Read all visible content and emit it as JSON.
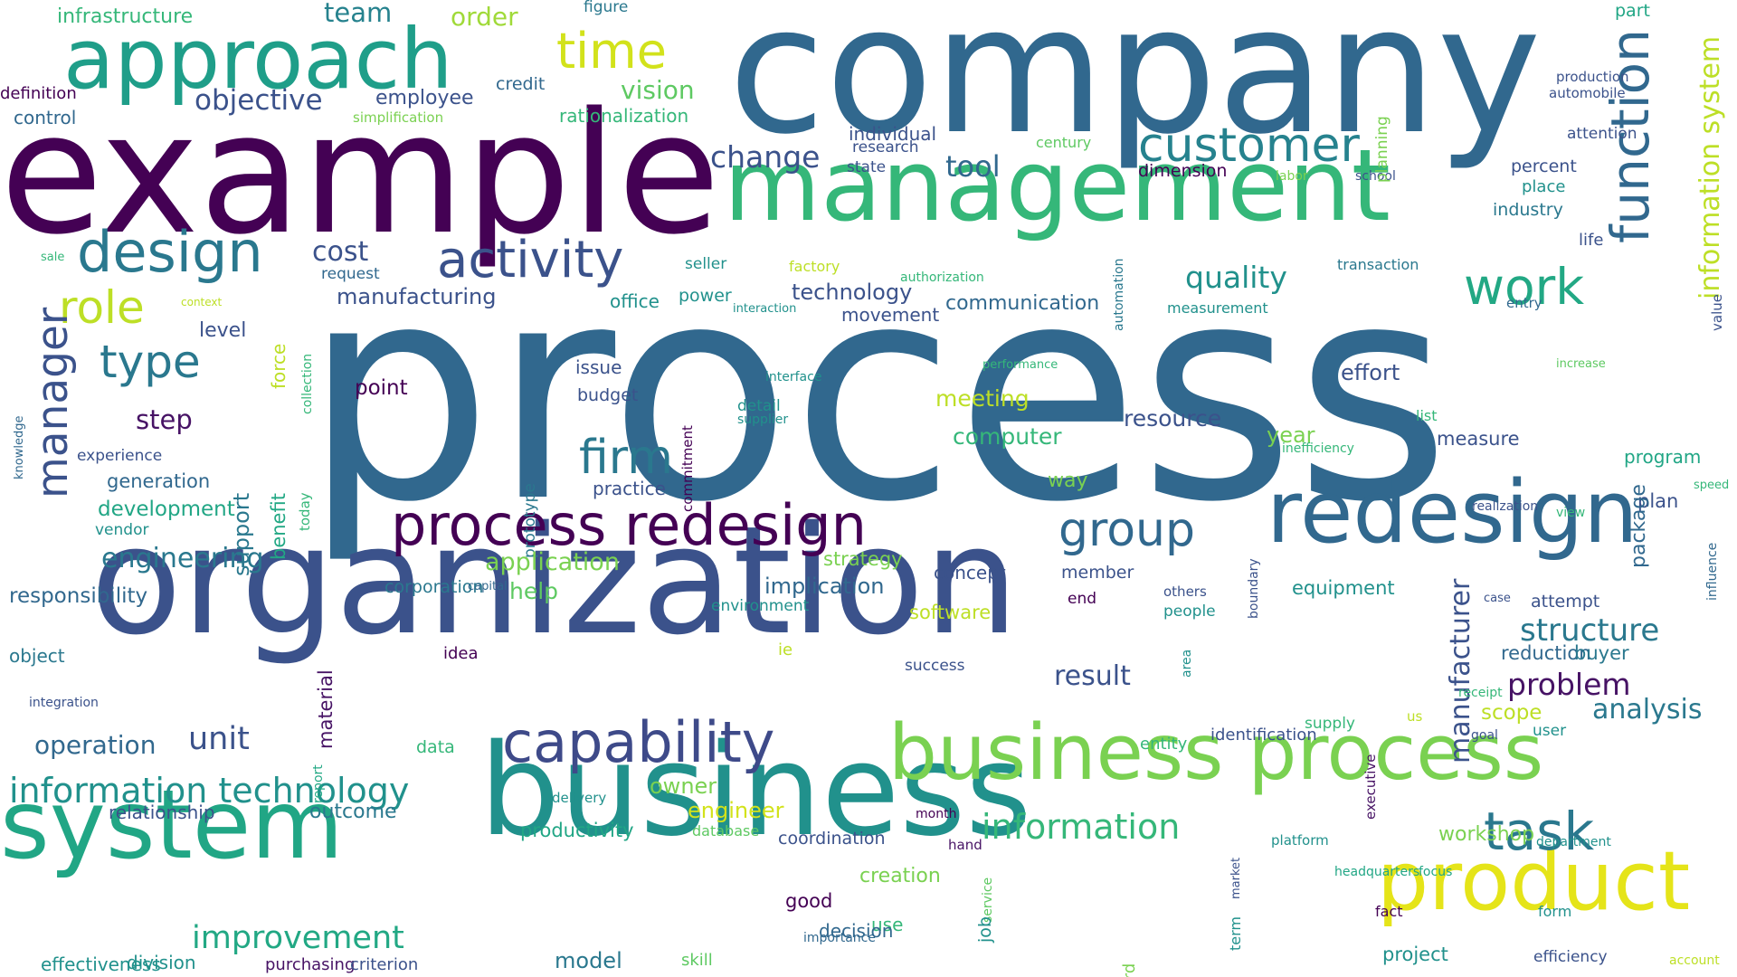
{
  "words": [
    {
      "text": "process",
      "color": "#31688e"
    },
    {
      "text": "company",
      "color": "#31688e"
    },
    {
      "text": "example",
      "color": "#440154"
    },
    {
      "text": "organization",
      "color": "#3b528b"
    },
    {
      "text": "business",
      "color": "#21918c"
    },
    {
      "text": "management",
      "color": "#35b779"
    },
    {
      "text": "system",
      "color": "#21a685"
    },
    {
      "text": "approach",
      "color": "#1f9e89"
    },
    {
      "text": "redesign",
      "color": "#31688e"
    },
    {
      "text": "business process",
      "color": "#7ad151"
    },
    {
      "text": "product",
      "color": "#e5e419"
    },
    {
      "text": "process redesign",
      "color": "#440154"
    },
    {
      "text": "capability",
      "color": "#3e4a89"
    },
    {
      "text": "function",
      "color": "#31688e"
    },
    {
      "text": "customer",
      "color": "#26828e"
    },
    {
      "text": "activity",
      "color": "#3b528b"
    },
    {
      "text": "design",
      "color": "#2a788e"
    },
    {
      "text": "work",
      "color": "#22a884"
    },
    {
      "text": "group",
      "color": "#31688e"
    },
    {
      "text": "time",
      "color": "#d2e21b"
    },
    {
      "text": "role",
      "color": "#bddf26"
    },
    {
      "text": "manager",
      "color": "#3b528b"
    },
    {
      "text": "type",
      "color": "#2a788e"
    },
    {
      "text": "firm",
      "color": "#2a788e"
    },
    {
      "text": "task",
      "color": "#2a788e"
    },
    {
      "text": "information technology",
      "color": "#21918c"
    },
    {
      "text": "information",
      "color": "#35b779"
    },
    {
      "text": "quality",
      "color": "#21918c"
    },
    {
      "text": "structure",
      "color": "#2a788e"
    },
    {
      "text": "improvement",
      "color": "#22a884"
    },
    {
      "text": "unit",
      "color": "#3b528b"
    },
    {
      "text": "problem",
      "color": "#471365"
    },
    {
      "text": "analysis",
      "color": "#2a788e"
    },
    {
      "text": "information system",
      "color": "#bddf26"
    },
    {
      "text": "engineering",
      "color": "#2a788e"
    },
    {
      "text": "change",
      "color": "#3b528b"
    },
    {
      "text": "tool",
      "color": "#31688e"
    },
    {
      "text": "cost",
      "color": "#3b528b"
    },
    {
      "text": "objective",
      "color": "#3b528b"
    },
    {
      "text": "team",
      "color": "#26828e"
    },
    {
      "text": "order",
      "color": "#a0da39"
    },
    {
      "text": "vision",
      "color": "#5ec962"
    },
    {
      "text": "infrastructure",
      "color": "#35b779"
    },
    {
      "text": "employee",
      "color": "#3b528b"
    },
    {
      "text": "credit",
      "color": "#31688e"
    },
    {
      "text": "figure",
      "color": "#2a788e"
    },
    {
      "text": "rationalization",
      "color": "#35b779"
    },
    {
      "text": "definition",
      "color": "#440154"
    },
    {
      "text": "control",
      "color": "#31688e"
    },
    {
      "text": "simplification",
      "color": "#7ad151"
    },
    {
      "text": "individual",
      "color": "#3b528b"
    },
    {
      "text": "research",
      "color": "#3b528b"
    },
    {
      "text": "state",
      "color": "#3b528b"
    },
    {
      "text": "century",
      "color": "#5ec962"
    },
    {
      "text": "dimension",
      "color": "#440154"
    },
    {
      "text": "labor",
      "color": "#7ad151"
    },
    {
      "text": "school",
      "color": "#3b528b"
    },
    {
      "text": "planning",
      "color": "#7ad151"
    },
    {
      "text": "production",
      "color": "#3b528b"
    },
    {
      "text": "automobile",
      "color": "#3b528b"
    },
    {
      "text": "part",
      "color": "#21a685"
    },
    {
      "text": "attention",
      "color": "#3b528b"
    },
    {
      "text": "percent",
      "color": "#3b528b"
    },
    {
      "text": "place",
      "color": "#21918c"
    },
    {
      "text": "industry",
      "color": "#2a788e"
    },
    {
      "text": "life",
      "color": "#3b528b"
    },
    {
      "text": "value",
      "color": "#3b528b"
    },
    {
      "text": "transaction",
      "color": "#2a788e"
    },
    {
      "text": "entry",
      "color": "#31688e"
    },
    {
      "text": "measurement",
      "color": "#21918c"
    },
    {
      "text": "automation",
      "color": "#2a788e"
    },
    {
      "text": "authorization",
      "color": "#35b779"
    },
    {
      "text": "factory",
      "color": "#bddf26"
    },
    {
      "text": "seller",
      "color": "#21918c"
    },
    {
      "text": "request",
      "color": "#31688e"
    },
    {
      "text": "sale",
      "color": "#35b779"
    },
    {
      "text": "context",
      "color": "#bddf26"
    },
    {
      "text": "manufacturing",
      "color": "#3b528b"
    },
    {
      "text": "office",
      "color": "#21918c"
    },
    {
      "text": "power",
      "color": "#21918c"
    },
    {
      "text": "interaction",
      "color": "#21918c"
    },
    {
      "text": "technology",
      "color": "#3b528b"
    },
    {
      "text": "movement",
      "color": "#3b528b"
    },
    {
      "text": "communication",
      "color": "#31688e"
    },
    {
      "text": "level",
      "color": "#3b528b"
    },
    {
      "text": "collection",
      "color": "#35b779"
    },
    {
      "text": "force",
      "color": "#bddf26"
    },
    {
      "text": "knowledge",
      "color": "#31688e"
    },
    {
      "text": "support",
      "color": "#2a788e"
    },
    {
      "text": "benefit",
      "color": "#22a884"
    },
    {
      "text": "today",
      "color": "#35b779"
    },
    {
      "text": "step",
      "color": "#471365"
    },
    {
      "text": "experience",
      "color": "#3b528b"
    },
    {
      "text": "generation",
      "color": "#31688e"
    },
    {
      "text": "development",
      "color": "#21a685"
    },
    {
      "text": "vendor",
      "color": "#21918c"
    },
    {
      "text": "responsibility",
      "color": "#31688e"
    },
    {
      "text": "point",
      "color": "#440154"
    },
    {
      "text": "issue",
      "color": "#3b528b"
    },
    {
      "text": "budget",
      "color": "#3b528b"
    },
    {
      "text": "commitment",
      "color": "#440154"
    },
    {
      "text": "interface",
      "color": "#21918c"
    },
    {
      "text": "detail",
      "color": "#21918c"
    },
    {
      "text": "supplier",
      "color": "#21918c"
    },
    {
      "text": "performance",
      "color": "#35b779"
    },
    {
      "text": "meeting",
      "color": "#bddf26"
    },
    {
      "text": "effort",
      "color": "#3b528b"
    },
    {
      "text": "increase",
      "color": "#5ec962"
    },
    {
      "text": "list",
      "color": "#35b779"
    },
    {
      "text": "computer",
      "color": "#35b779"
    },
    {
      "text": "resource",
      "color": "#3b528b"
    },
    {
      "text": "year",
      "color": "#7ad151"
    },
    {
      "text": "inefficiency",
      "color": "#35b779"
    },
    {
      "text": "measure",
      "color": "#3b528b"
    },
    {
      "text": "program",
      "color": "#21a685"
    },
    {
      "text": "speed",
      "color": "#35b779"
    },
    {
      "text": "way",
      "color": "#7ad151"
    },
    {
      "text": "prototype",
      "color": "#2a788e"
    },
    {
      "text": "practice",
      "color": "#3b528b"
    },
    {
      "text": "plan",
      "color": "#3b528b"
    },
    {
      "text": "realization",
      "color": "#3b528b"
    },
    {
      "text": "view",
      "color": "#35b779"
    },
    {
      "text": "package",
      "color": "#31688e"
    },
    {
      "text": "influence",
      "color": "#31688e"
    },
    {
      "text": "boundary",
      "color": "#3b528b"
    },
    {
      "text": "application",
      "color": "#7ad151"
    },
    {
      "text": "strategy",
      "color": "#7ad151"
    },
    {
      "text": "concept",
      "color": "#3b528b"
    },
    {
      "text": "member",
      "color": "#3b528b"
    },
    {
      "text": "others",
      "color": "#3b528b"
    },
    {
      "text": "equipment",
      "color": "#21918c"
    },
    {
      "text": "case",
      "color": "#3b528b"
    },
    {
      "text": "attempt",
      "color": "#3b528b"
    },
    {
      "text": "corporation",
      "color": "#2a788e"
    },
    {
      "text": "capital",
      "color": "#31688e"
    },
    {
      "text": "help",
      "color": "#5ec962"
    },
    {
      "text": "implication",
      "color": "#31688e"
    },
    {
      "text": "environment",
      "color": "#21918c"
    },
    {
      "text": "software",
      "color": "#bddf26"
    },
    {
      "text": "end",
      "color": "#440154"
    },
    {
      "text": "people",
      "color": "#21918c"
    },
    {
      "text": "manufacturer",
      "color": "#3b528b"
    },
    {
      "text": "reduction",
      "color": "#31688e"
    },
    {
      "text": "buyer",
      "color": "#2a788e"
    },
    {
      "text": "material",
      "color": "#471365"
    },
    {
      "text": "object",
      "color": "#2a788e"
    },
    {
      "text": "idea",
      "color": "#440154"
    },
    {
      "text": "ie",
      "color": "#bddf26"
    },
    {
      "text": "success",
      "color": "#3b528b"
    },
    {
      "text": "result",
      "color": "#3b528b"
    },
    {
      "text": "area",
      "color": "#21918c"
    },
    {
      "text": "receipt",
      "color": "#35b779"
    },
    {
      "text": "us",
      "color": "#bddf26"
    },
    {
      "text": "scope",
      "color": "#bddf26"
    },
    {
      "text": "goal",
      "color": "#3b528b"
    },
    {
      "text": "user",
      "color": "#21918c"
    },
    {
      "text": "integration",
      "color": "#3b528b"
    },
    {
      "text": "report",
      "color": "#22a884"
    },
    {
      "text": "operation",
      "color": "#31688e"
    },
    {
      "text": "data",
      "color": "#35b779"
    },
    {
      "text": "entity",
      "color": "#35b779"
    },
    {
      "text": "identification",
      "color": "#3b528b"
    },
    {
      "text": "executive",
      "color": "#471365"
    },
    {
      "text": "supply",
      "color": "#35b779"
    },
    {
      "text": "relationship",
      "color": "#3b528b"
    },
    {
      "text": "outcome",
      "color": "#2a788e"
    },
    {
      "text": "owner",
      "color": "#7ad151"
    },
    {
      "text": "engineer",
      "color": "#d2e21b"
    },
    {
      "text": "delivery",
      "color": "#21918c"
    },
    {
      "text": "productivity",
      "color": "#21a685"
    },
    {
      "text": "database",
      "color": "#5ec962"
    },
    {
      "text": "coordination",
      "color": "#3b528b"
    },
    {
      "text": "month",
      "color": "#440154"
    },
    {
      "text": "hand",
      "color": "#471365"
    },
    {
      "text": "market",
      "color": "#3b528b"
    },
    {
      "text": "platform",
      "color": "#21918c"
    },
    {
      "text": "department",
      "color": "#21918c"
    },
    {
      "text": "headquarters",
      "color": "#21a685"
    },
    {
      "text": "focus",
      "color": "#21a685"
    },
    {
      "text": "service",
      "color": "#5ec962"
    },
    {
      "text": "workshop",
      "color": "#7ad151"
    },
    {
      "text": "creation",
      "color": "#7ad151"
    },
    {
      "text": "good",
      "color": "#440154"
    },
    {
      "text": "use",
      "color": "#35b779"
    },
    {
      "text": "term",
      "color": "#21918c"
    },
    {
      "text": "fact",
      "color": "#440154"
    },
    {
      "text": "form",
      "color": "#21918c"
    },
    {
      "text": "job",
      "color": "#21918c"
    },
    {
      "text": "decision",
      "color": "#31688e"
    },
    {
      "text": "importance",
      "color": "#31688e"
    },
    {
      "text": "word",
      "color": "#7ad151"
    },
    {
      "text": "project",
      "color": "#21918c"
    },
    {
      "text": "efficiency",
      "color": "#3b528b"
    },
    {
      "text": "account",
      "color": "#bddf26"
    },
    {
      "text": "effectiveness",
      "color": "#21918c"
    },
    {
      "text": "division",
      "color": "#21918c"
    },
    {
      "text": "purchasing",
      "color": "#471365"
    },
    {
      "text": "criterion",
      "color": "#3b528b"
    },
    {
      "text": "model",
      "color": "#2a788e"
    },
    {
      "text": "skill",
      "color": "#5ec962"
    }
  ]
}
